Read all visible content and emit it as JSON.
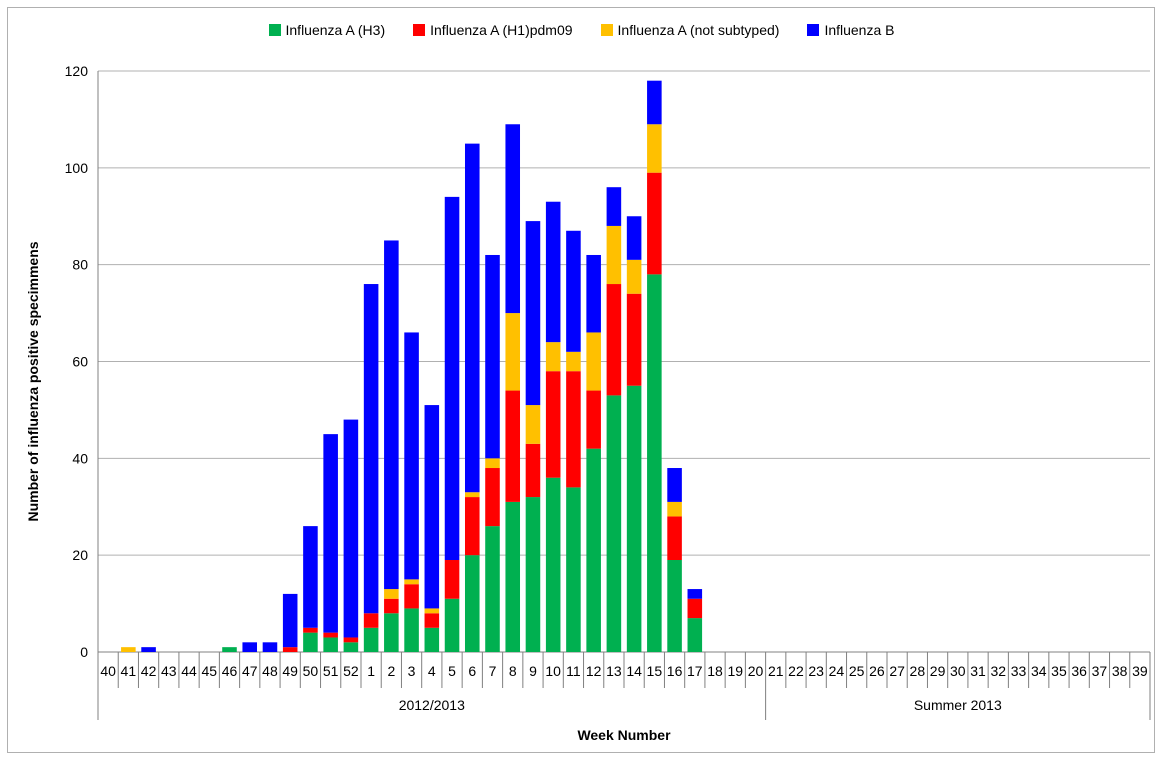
{
  "chart_data": {
    "type": "bar",
    "stacked": true,
    "ylabel": "Number of influenza positive specimmens",
    "xlabel": "Week Number",
    "ylim": [
      0,
      120
    ],
    "yticks": [
      0,
      20,
      40,
      60,
      80,
      100,
      120
    ],
    "grid": true,
    "legend_position": "top",
    "categories": [
      "40",
      "41",
      "42",
      "43",
      "44",
      "45",
      "46",
      "47",
      "48",
      "49",
      "50",
      "51",
      "52",
      "1",
      "2",
      "3",
      "4",
      "5",
      "6",
      "7",
      "8",
      "9",
      "10",
      "11",
      "12",
      "13",
      "14",
      "15",
      "16",
      "17",
      "18",
      "19",
      "20",
      "21",
      "22",
      "23",
      "24",
      "25",
      "26",
      "27",
      "28",
      "29",
      "30",
      "31",
      "32",
      "33",
      "34",
      "35",
      "36",
      "37",
      "38",
      "39"
    ],
    "groups": [
      {
        "label": "2012/2013",
        "count": 33
      },
      {
        "label": "Summer 2013",
        "count": 19
      }
    ],
    "series": [
      {
        "name": "Influenza A (H3)",
        "color": "#00b050",
        "values": [
          0,
          0,
          0,
          0,
          0,
          0,
          1,
          0,
          0,
          0,
          4,
          3,
          2,
          5,
          8,
          9,
          5,
          11,
          20,
          26,
          31,
          32,
          36,
          34,
          42,
          53,
          55,
          78,
          19,
          7,
          0,
          0,
          0,
          0,
          0,
          0,
          0,
          0,
          0,
          0,
          0,
          0,
          0,
          0,
          0,
          0,
          0,
          0,
          0,
          0,
          0,
          0
        ]
      },
      {
        "name": "Influenza A (H1)pdm09",
        "color": "#ff0000",
        "values": [
          0,
          0,
          0,
          0,
          0,
          0,
          0,
          0,
          0,
          1,
          1,
          1,
          1,
          3,
          3,
          5,
          3,
          8,
          12,
          12,
          23,
          11,
          22,
          24,
          12,
          23,
          19,
          21,
          9,
          4,
          0,
          0,
          0,
          0,
          0,
          0,
          0,
          0,
          0,
          0,
          0,
          0,
          0,
          0,
          0,
          0,
          0,
          0,
          0,
          0,
          0,
          0
        ]
      },
      {
        "name": "Influenza A (not subtyped)",
        "color": "#ffc000",
        "values": [
          0,
          1,
          0,
          0,
          0,
          0,
          0,
          0,
          0,
          0,
          0,
          0,
          0,
          0,
          2,
          1,
          1,
          0,
          1,
          2,
          16,
          8,
          6,
          4,
          12,
          12,
          7,
          10,
          3,
          0,
          0,
          0,
          0,
          0,
          0,
          0,
          0,
          0,
          0,
          0,
          0,
          0,
          0,
          0,
          0,
          0,
          0,
          0,
          0,
          0,
          0,
          0
        ]
      },
      {
        "name": "Influenza B",
        "color": "#0000ff",
        "values": [
          0,
          0,
          1,
          0,
          0,
          0,
          0,
          2,
          2,
          11,
          21,
          41,
          45,
          68,
          72,
          51,
          42,
          75,
          72,
          42,
          39,
          38,
          29,
          25,
          16,
          8,
          9,
          9,
          7,
          2,
          0,
          0,
          0,
          0,
          0,
          0,
          0,
          0,
          0,
          0,
          0,
          0,
          0,
          0,
          0,
          0,
          0,
          0,
          0,
          0,
          0,
          0
        ]
      }
    ]
  }
}
